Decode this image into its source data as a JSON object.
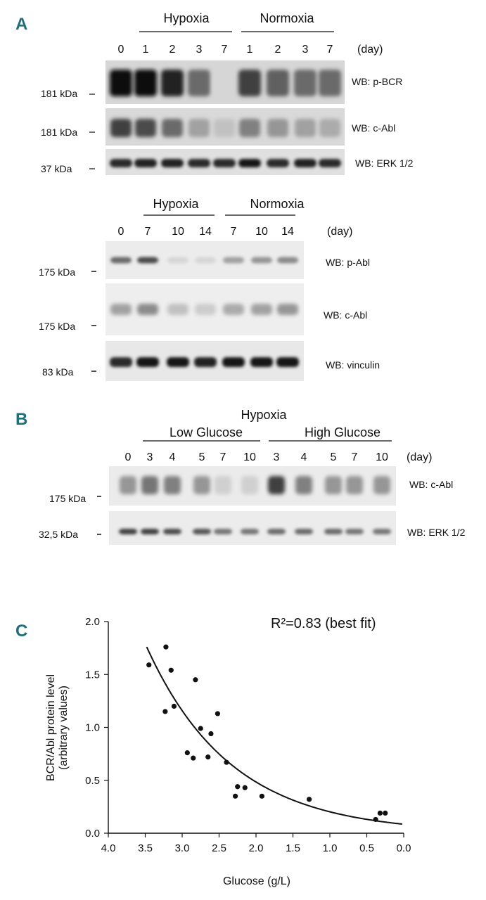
{
  "panel_a": {
    "letter": "A",
    "top": {
      "conditions": [
        {
          "label": "Hypoxia"
        },
        {
          "label": "Normoxia"
        }
      ],
      "lanes": [
        "0",
        "1",
        "2",
        "3",
        "7",
        "1",
        "2",
        "3",
        "7"
      ],
      "day_label": "(day)",
      "blots": [
        {
          "kda": "181 kDa",
          "wb": "WB: p-BCR",
          "intensities": [
            1.0,
            1.0,
            0.9,
            0.55,
            0.05,
            0.75,
            0.6,
            0.55,
            0.55
          ]
        },
        {
          "kda": "181 kDa",
          "wb": "WB: c-Abl",
          "intensities": [
            0.75,
            0.7,
            0.55,
            0.3,
            0.15,
            0.45,
            0.35,
            0.3,
            0.25
          ]
        },
        {
          "kda": "37 kDa",
          "wb": "WB: ERK 1/2",
          "intensities": [
            0.85,
            0.9,
            0.9,
            0.85,
            0.85,
            0.95,
            0.85,
            0.9,
            0.85
          ]
        }
      ]
    },
    "bottom": {
      "conditions": [
        {
          "label": "Hypoxia"
        },
        {
          "label": "Normoxia"
        }
      ],
      "lanes": [
        "0",
        "7",
        "10",
        "14",
        "7",
        "10",
        "14"
      ],
      "day_label": "(day)",
      "blots": [
        {
          "kda": "175 kDa",
          "wb": "WB: p-Abl",
          "intensities": [
            0.55,
            0.7,
            0.05,
            0.05,
            0.3,
            0.35,
            0.4
          ]
        },
        {
          "kda": "175 kDa",
          "wb": "WB: c-Abl",
          "intensities": [
            0.3,
            0.4,
            0.15,
            0.1,
            0.25,
            0.3,
            0.35
          ]
        },
        {
          "kda": "83 kDa",
          "wb": "WB: vinculin",
          "intensities": [
            0.85,
            0.95,
            0.95,
            0.9,
            0.95,
            0.95,
            0.95
          ]
        }
      ]
    }
  },
  "panel_b": {
    "letter": "B",
    "title": "Hypoxia",
    "conditions": [
      {
        "label": "Low Glucose"
      },
      {
        "label": "High Glucose"
      }
    ],
    "lanes": [
      "0",
      "3",
      "4",
      "5",
      "7",
      "10",
      "3",
      "4",
      "5",
      "7",
      "10"
    ],
    "day_label": "(day)",
    "blots": [
      {
        "kda": "175 kDa",
        "wb": "WB: c-Abl",
        "intensities": [
          0.35,
          0.5,
          0.45,
          0.35,
          0.08,
          0.08,
          0.75,
          0.45,
          0.35,
          0.35,
          0.35
        ]
      },
      {
        "kda": "32,5 kDa",
        "wb": "WB: ERK 1/2",
        "intensities": [
          0.75,
          0.75,
          0.7,
          0.65,
          0.5,
          0.5,
          0.55,
          0.55,
          0.55,
          0.5,
          0.5
        ]
      }
    ]
  },
  "panel_c": {
    "letter": "C",
    "r2_label": "R²=0.83 (best fit)"
  },
  "chart_data": {
    "type": "scatter",
    "title": "",
    "annotation": "R²=0.83 (best fit)",
    "xlabel": "Glucose (g/L)",
    "ylabel_lines": [
      "BCR/Abl protein level",
      "(arbitrary values)"
    ],
    "xlim": [
      4.0,
      0.0
    ],
    "ylim": [
      0.0,
      2.0
    ],
    "x_reversed": true,
    "xticks": [
      "4.0",
      "3.5",
      "3.0",
      "2.5",
      "2.0",
      "1.5",
      "1.0",
      "0.5",
      "0.0"
    ],
    "yticks": [
      "0.0",
      "0.5",
      "1.0",
      "1.5",
      "2.0"
    ],
    "grid": false,
    "points": [
      {
        "x": 3.45,
        "y": 1.59
      },
      {
        "x": 3.23,
        "y": 1.15
      },
      {
        "x": 3.22,
        "y": 1.76
      },
      {
        "x": 3.15,
        "y": 1.54
      },
      {
        "x": 3.11,
        "y": 1.2
      },
      {
        "x": 2.93,
        "y": 0.76
      },
      {
        "x": 2.85,
        "y": 0.71
      },
      {
        "x": 2.82,
        "y": 1.45
      },
      {
        "x": 2.75,
        "y": 0.99
      },
      {
        "x": 2.65,
        "y": 0.72
      },
      {
        "x": 2.61,
        "y": 0.94
      },
      {
        "x": 2.52,
        "y": 1.13
      },
      {
        "x": 2.4,
        "y": 0.67
      },
      {
        "x": 2.28,
        "y": 0.35
      },
      {
        "x": 2.25,
        "y": 0.44
      },
      {
        "x": 2.15,
        "y": 0.43
      },
      {
        "x": 1.92,
        "y": 0.35
      },
      {
        "x": 1.28,
        "y": 0.32
      },
      {
        "x": 0.38,
        "y": 0.13
      },
      {
        "x": 0.32,
        "y": 0.19
      },
      {
        "x": 0.25,
        "y": 0.19
      }
    ],
    "fit": {
      "type": "exponential",
      "a": 0.0846,
      "b": 0.8722
    }
  }
}
